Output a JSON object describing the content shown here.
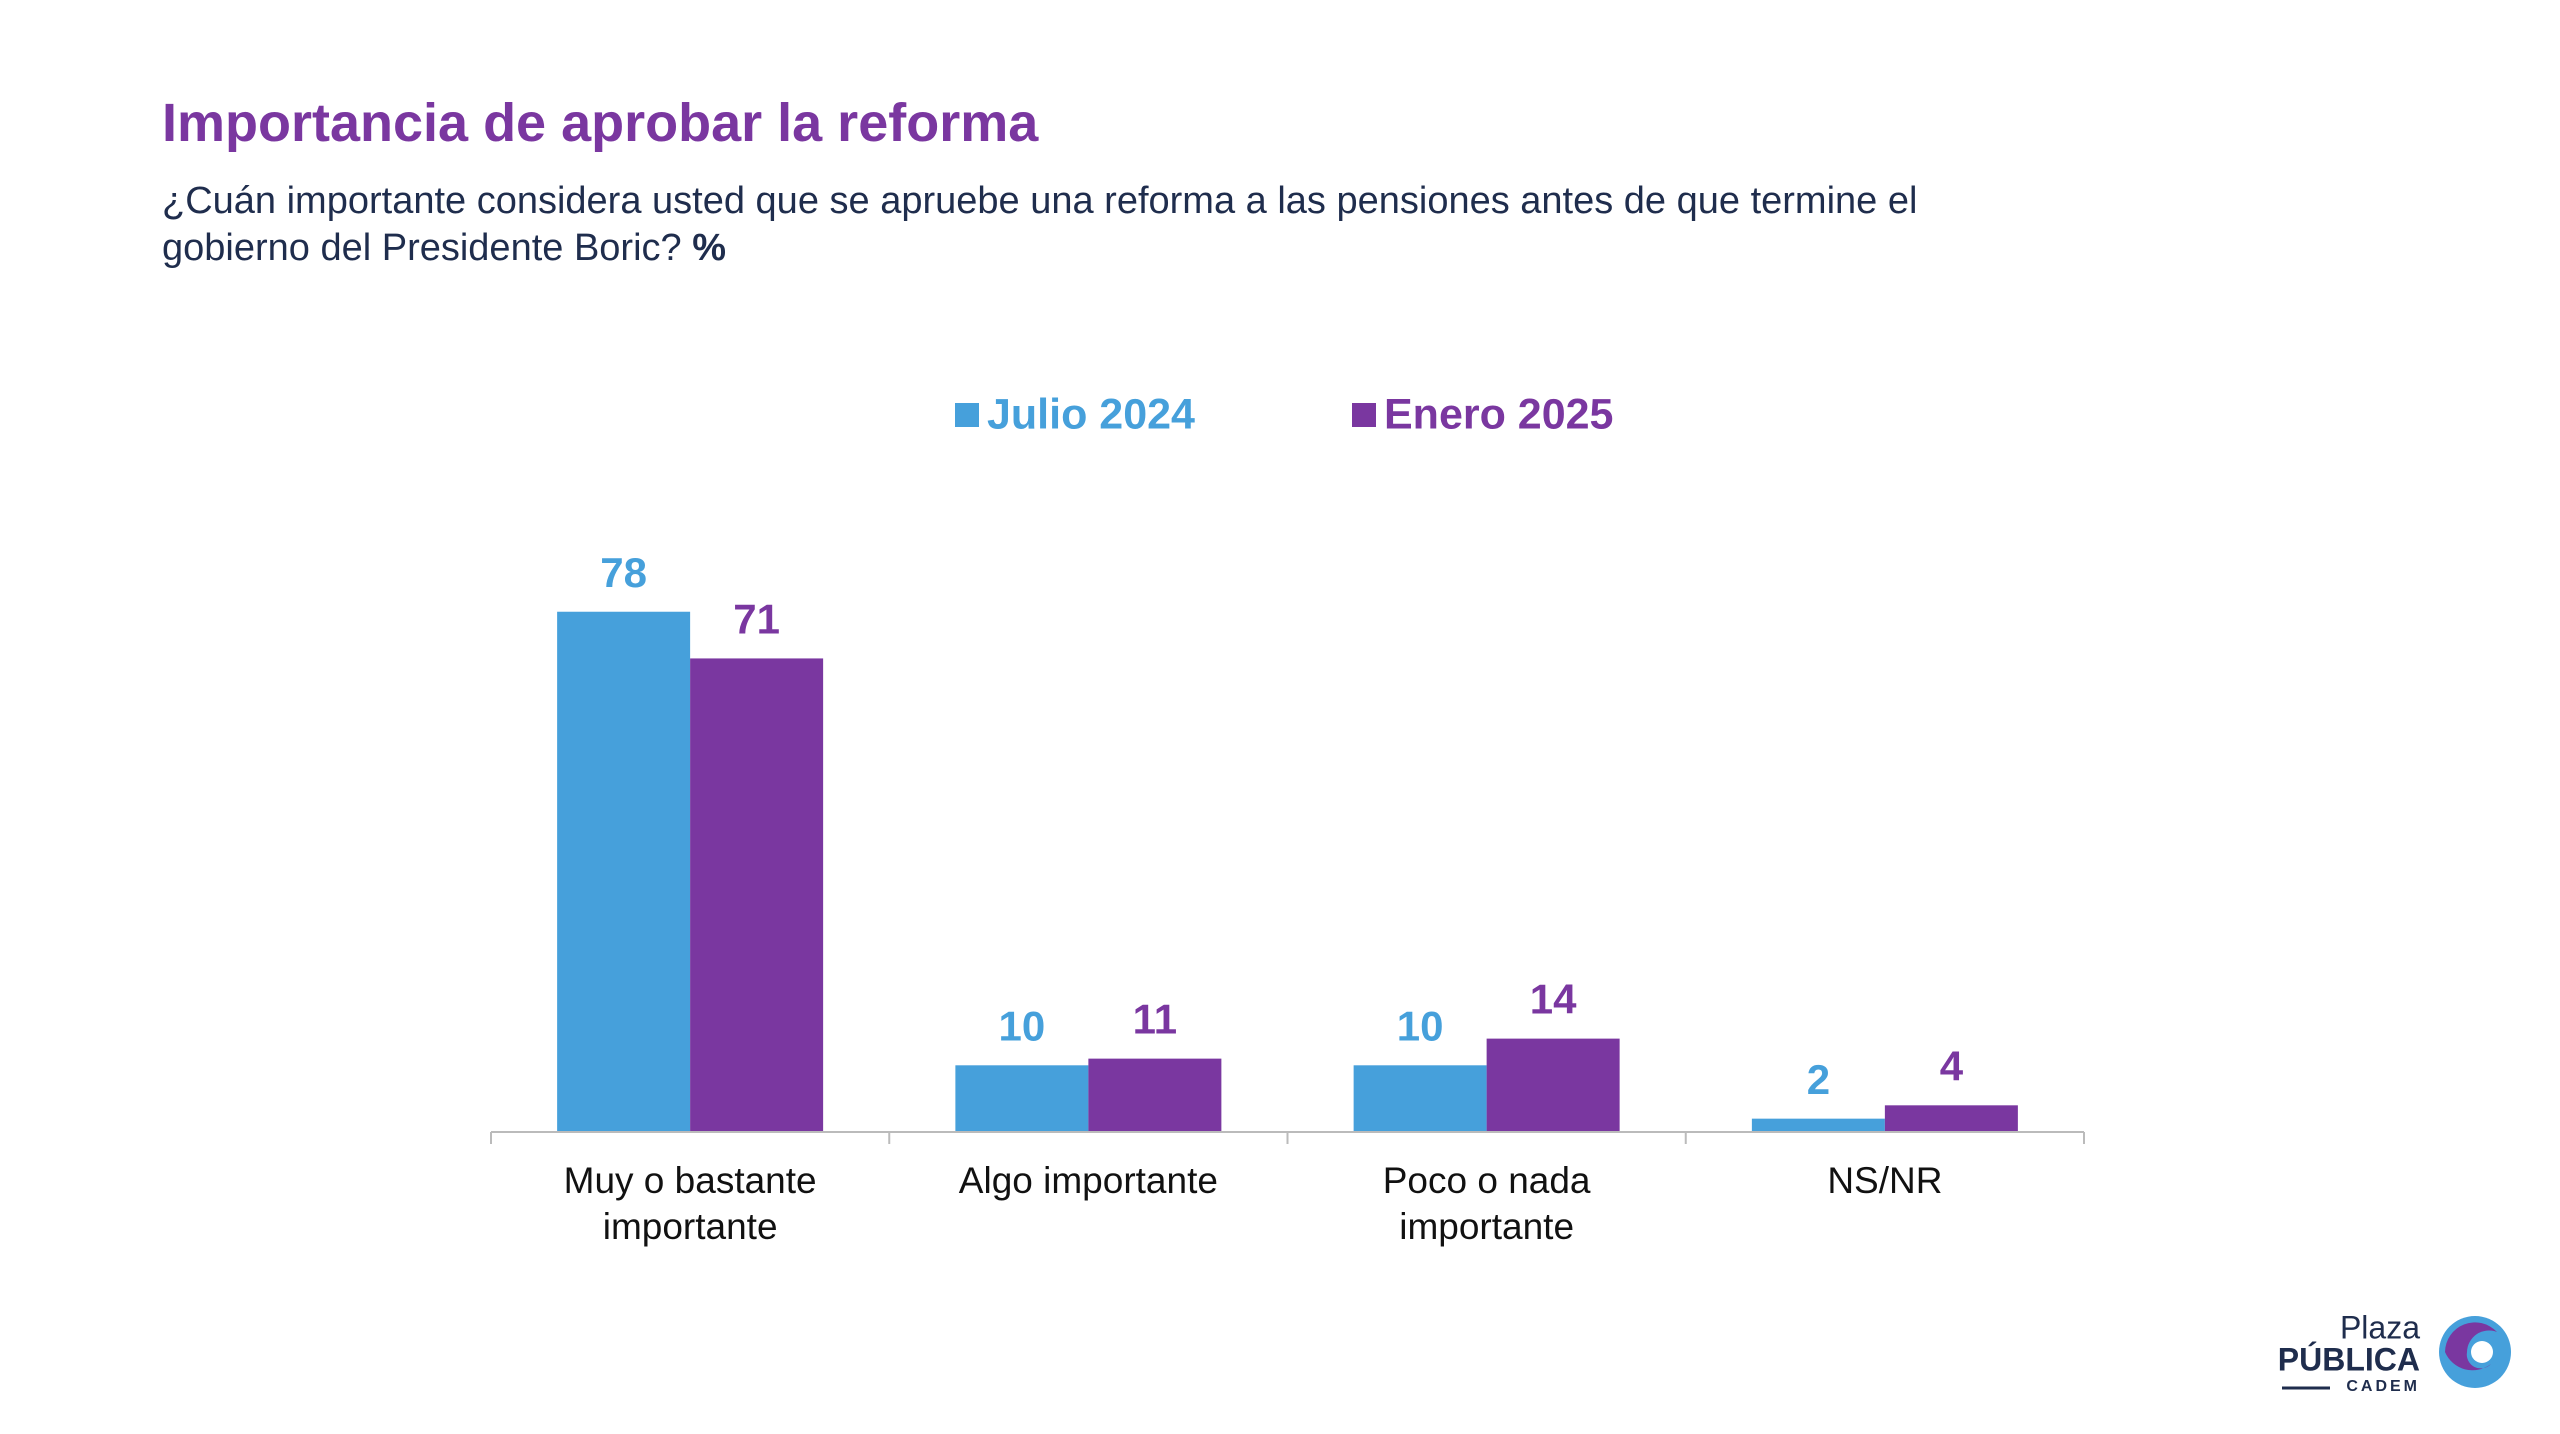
{
  "chart_data": {
    "type": "bar",
    "title": "Importancia de aprobar la reforma",
    "subtitle": [
      "¿Cuán importante considera usted que se apruebe una reforma a las pensiones antes de que termine el",
      "gobierno del Presidente Boric?"
    ],
    "unit": "%",
    "categories": [
      "Muy o bastante importante",
      "Algo importante",
      "Poco o nada importante",
      "NS/NR"
    ],
    "series": [
      {
        "name": "Julio 2024",
        "color": "#46a0db",
        "values": [
          78,
          10,
          10,
          2
        ]
      },
      {
        "name": "Enero 2025",
        "color": "#7a37a0",
        "values": [
          71,
          11,
          14,
          4
        ]
      }
    ],
    "ylim": [
      0,
      100
    ],
    "legend": "top"
  },
  "logo": {
    "line1": "Plaza",
    "line2": "PÚBLICA",
    "line3": "CADEM"
  }
}
